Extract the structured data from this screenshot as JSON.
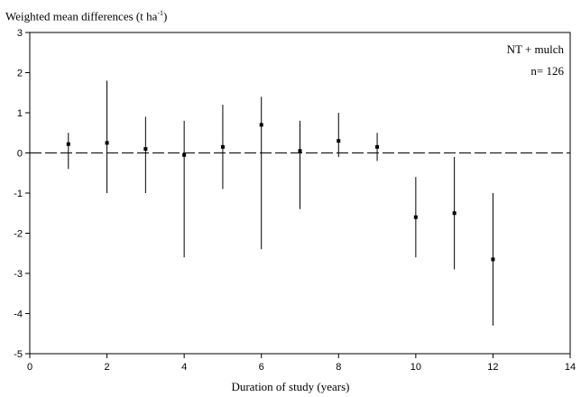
{
  "chart_data": {
    "type": "scatter",
    "title": "",
    "ylabel": {
      "prefix": "Weighted mean differences  (t ha",
      "superscript": "-1",
      "suffix": ")"
    },
    "xlabel": "Duration of study (years)",
    "xlim": [
      0,
      14
    ],
    "ylim": [
      -5,
      3
    ],
    "xticks": [
      "0",
      "2",
      "4",
      "6",
      "8",
      "10",
      "12",
      "14"
    ],
    "yticks": [
      "-5",
      "-4",
      "-3",
      "-2",
      "-1",
      "0",
      "1",
      "2",
      "3"
    ],
    "annotations": {
      "series_label": "NT + mulch",
      "n_label": "n= 126"
    },
    "reference_line": {
      "y": 0,
      "style": "dashed"
    },
    "grid": false,
    "points": [
      {
        "x": 1,
        "y": 0.22,
        "low": -0.4,
        "high": 0.5
      },
      {
        "x": 2,
        "y": 0.25,
        "low": -1.0,
        "high": 1.8
      },
      {
        "x": 3,
        "y": 0.1,
        "low": -1.0,
        "high": 0.9
      },
      {
        "x": 4,
        "y": -0.05,
        "low": -2.6,
        "high": 0.8
      },
      {
        "x": 5,
        "y": 0.15,
        "low": -0.9,
        "high": 1.2
      },
      {
        "x": 6,
        "y": 0.7,
        "low": -2.4,
        "high": 1.4
      },
      {
        "x": 7,
        "y": 0.05,
        "low": -1.4,
        "high": 0.8
      },
      {
        "x": 8,
        "y": 0.3,
        "low": -0.1,
        "high": 1.0
      },
      {
        "x": 9,
        "y": 0.15,
        "low": -0.2,
        "high": 0.5
      },
      {
        "x": 10,
        "y": -1.6,
        "low": -2.6,
        "high": -0.6
      },
      {
        "x": 11,
        "y": -1.5,
        "low": -2.9,
        "high": -0.1
      },
      {
        "x": 12,
        "y": -2.65,
        "low": -4.3,
        "high": -1.0
      }
    ]
  }
}
